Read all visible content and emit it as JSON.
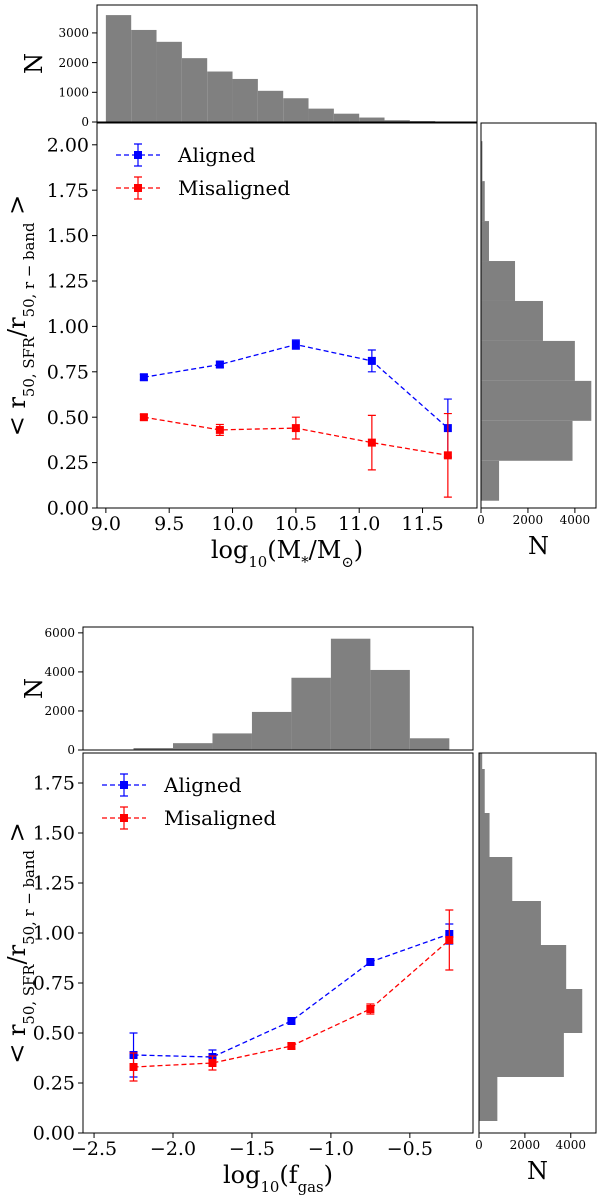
{
  "chart_data": [
    {
      "type": "line",
      "legend": "upper left",
      "linestyle": "dashed",
      "marker": "square",
      "xlabel": [
        "log",
        "10",
        "(M",
        "*",
        "/M",
        "⊙",
        ")"
      ],
      "ylabel": [
        "< r",
        "50, SFR",
        "/r",
        "50, r − band",
        " >"
      ],
      "x": [
        9.3,
        9.9,
        10.5,
        11.1,
        11.7
      ],
      "series": [
        {
          "name": "Aligned",
          "color": "#0000ff",
          "values": [
            0.72,
            0.79,
            0.9,
            0.81,
            0.44
          ],
          "errors": [
            0.015,
            0.015,
            0.025,
            0.06,
            0.16
          ]
        },
        {
          "name": "Misaligned",
          "color": "#ff0000",
          "values": [
            0.5,
            0.43,
            0.44,
            0.36,
            0.29
          ],
          "errors": [
            0.015,
            0.03,
            0.06,
            0.15,
            0.23
          ]
        }
      ],
      "xlim": [
        8.93,
        11.93
      ],
      "ylim": [
        0,
        2.12
      ],
      "xticks": [
        {
          "value": 9,
          "label": "9.0"
        },
        9.5,
        {
          "value": 10,
          "label": "10.0"
        },
        10.5,
        {
          "value": 11,
          "label": "11.0"
        },
        11.5
      ],
      "yticks": [
        {
          "value": 0,
          "label": "0.00"
        },
        0.25,
        {
          "value": 0.5,
          "label": "0.50"
        },
        0.75,
        {
          "value": 1,
          "label": "1.00"
        },
        1.25,
        {
          "value": 1.5,
          "label": "1.50"
        },
        1.75,
        {
          "value": 2,
          "label": "2.00"
        }
      ]
    },
    {
      "type": "histogram",
      "orientation": "vertical",
      "ylabel": "N",
      "color": "#808080",
      "bins": [
        9.0,
        9.2,
        9.4,
        9.6,
        9.8,
        10.0,
        10.2,
        10.4,
        10.6,
        10.8,
        11.0,
        11.2,
        11.4,
        11.6,
        11.8
      ],
      "counts": [
        3600,
        3100,
        2700,
        2150,
        1700,
        1450,
        1050,
        800,
        450,
        280,
        150,
        60,
        30,
        10
      ],
      "xlim": [
        8.93,
        11.93
      ],
      "ylim": [
        0,
        3940
      ],
      "yticks": [
        0,
        1000,
        2000,
        3000
      ]
    },
    {
      "type": "histogram",
      "orientation": "horizontal",
      "xlabel": "N",
      "color": "#808080",
      "bins": [
        0.04,
        0.26,
        0.48,
        0.7,
        0.92,
        1.14,
        1.36,
        1.58,
        1.8,
        2.02
      ],
      "counts": [
        770,
        3900,
        4700,
        4000,
        2640,
        1450,
        340,
        160,
        60
      ],
      "xlim": [
        0,
        4900
      ],
      "ylim": [
        0,
        2.12
      ],
      "xticks": [
        0,
        2000,
        4000
      ]
    },
    {
      "type": "line",
      "legend": "upper left",
      "linestyle": "dashed",
      "marker": "square",
      "xlabel": [
        "log",
        "10",
        "(f",
        "gas",
        ")"
      ],
      "ylabel": [
        "< r",
        "50, SFR",
        "/r",
        "50, r − band",
        " >"
      ],
      "x": [
        -2.25,
        -1.75,
        -1.25,
        -0.75,
        -0.25
      ],
      "series": [
        {
          "name": "Aligned",
          "color": "#0000ff",
          "values": [
            0.39,
            0.38,
            0.56,
            0.855,
            0.995
          ],
          "errors": [
            0.11,
            0.035,
            0.01,
            0.01,
            0.05
          ]
        },
        {
          "name": "Misaligned",
          "color": "#ff0000",
          "values": [
            0.33,
            0.35,
            0.435,
            0.62,
            0.965
          ],
          "errors": [
            0.07,
            0.035,
            0.015,
            0.025,
            0.15
          ]
        }
      ],
      "xlim": [
        -2.57,
        -0.1
      ],
      "ylim": [
        0,
        1.9
      ],
      "xticks": [
        {
          "value": -2.5,
          "label": "−2.5"
        },
        {
          "value": -2,
          "label": "−2.0"
        },
        {
          "value": -1.5,
          "label": "−1.5"
        },
        {
          "value": -1,
          "label": "−1.0"
        },
        {
          "value": -0.5,
          "label": "−0.5"
        }
      ],
      "yticks": [
        {
          "value": 0,
          "label": "0.00"
        },
        0.25,
        {
          "value": 0.5,
          "label": "0.50"
        },
        0.75,
        {
          "value": 1,
          "label": "1.00"
        },
        1.25,
        {
          "value": 1.5,
          "label": "1.50"
        },
        1.75
      ]
    },
    {
      "type": "histogram",
      "orientation": "vertical",
      "ylabel": "N",
      "color": "#808080",
      "bins": [
        -2.25,
        -2.0,
        -1.75,
        -1.5,
        -1.25,
        -1.0,
        -0.75,
        -0.5,
        -0.25
      ],
      "counts": [
        100,
        350,
        850,
        1950,
        3700,
        5700,
        4100,
        600
      ],
      "xlim": [
        -2.57,
        -0.1
      ],
      "ylim": [
        0,
        6300
      ],
      "yticks": [
        0,
        2000,
        4000,
        6000
      ]
    },
    {
      "type": "histogram",
      "orientation": "horizontal",
      "xlabel": "N",
      "color": "#808080",
      "bins": [
        0.06,
        0.28,
        0.5,
        0.72,
        0.94,
        1.16,
        1.38,
        1.6,
        1.82,
        2.04
      ],
      "counts": [
        800,
        3700,
        4500,
        3800,
        2700,
        1450,
        460,
        250,
        140
      ],
      "xlim": [
        0,
        5100
      ],
      "ylim": [
        0,
        1.9
      ],
      "xticks": [
        0,
        2000,
        4000
      ]
    }
  ]
}
